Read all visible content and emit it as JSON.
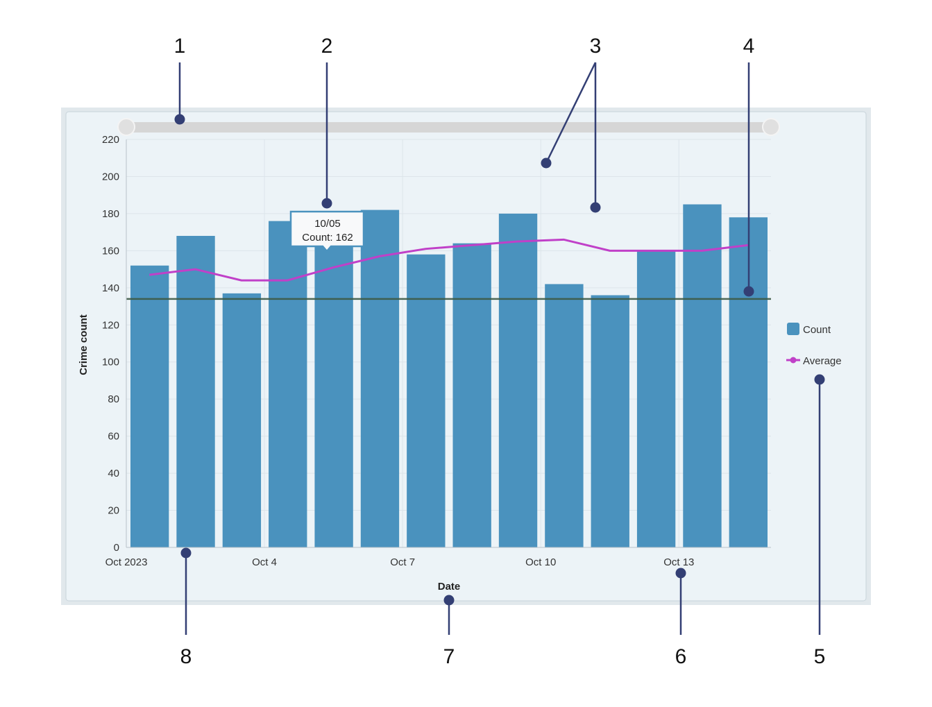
{
  "callouts": [
    "1",
    "2",
    "3",
    "4",
    "5",
    "6",
    "7",
    "8"
  ],
  "colors": {
    "bar": "#4a92be",
    "average": "#c040c8",
    "threshold": "#3d5a45",
    "callout": "#333f74",
    "panel": "#ecf3f7",
    "frame": "#e1e8ec",
    "scrollbar": "#d6d6d6"
  },
  "tooltip": {
    "date": "10/05",
    "text": "Count: 162"
  },
  "legend": {
    "placement": "right",
    "items": [
      {
        "label": "Count",
        "icon": "square-swatch-icon"
      },
      {
        "label": "Average",
        "icon": "line-marker-icon"
      }
    ]
  },
  "chart_data": {
    "type": "bar",
    "xlabel": "Date",
    "ylabel": "Crime count",
    "ylim": [
      0,
      220
    ],
    "yticks": [
      "0",
      "20",
      "40",
      "60",
      "80",
      "100",
      "120",
      "140",
      "160",
      "180",
      "200",
      "220"
    ],
    "xticks": [
      "Oct 2023",
      "Oct 4",
      "Oct 7",
      "Oct 10",
      "Oct 13"
    ],
    "grid": true,
    "categories": [
      "2023-10-01",
      "2023-10-02",
      "2023-10-03",
      "2023-10-04",
      "2023-10-05",
      "2023-10-06",
      "2023-10-07",
      "2023-10-08",
      "2023-10-09",
      "2023-10-10",
      "2023-10-11",
      "2023-10-12",
      "2023-10-13",
      "2023-10-14"
    ],
    "series": [
      {
        "name": "Count",
        "type": "bar",
        "values": [
          152,
          168,
          137,
          176,
          162,
          182,
          158,
          164,
          180,
          142,
          136,
          160,
          185,
          178
        ]
      },
      {
        "name": "Average",
        "type": "line",
        "values": [
          147,
          150,
          144,
          144,
          151,
          157,
          161,
          163,
          165,
          166,
          160,
          160,
          160,
          163
        ]
      }
    ],
    "threshold": 134,
    "range_slider": {
      "start": "2023-10-01",
      "end": "2023-10-15"
    }
  }
}
